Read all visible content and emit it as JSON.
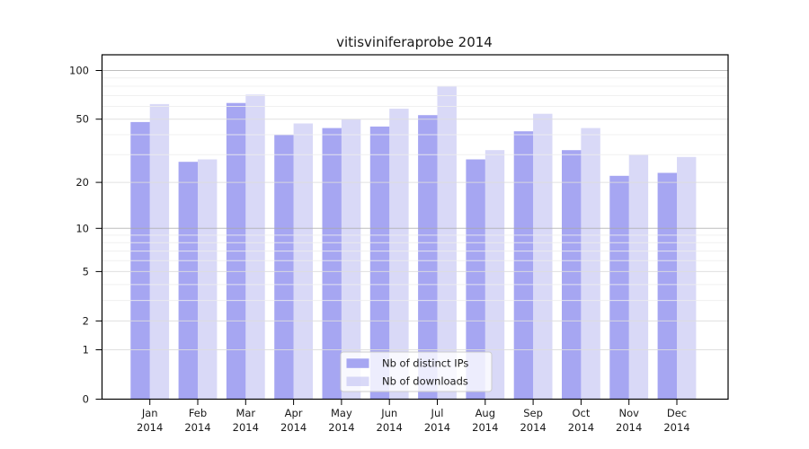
{
  "chart_data": {
    "type": "bar",
    "title": "vitisviniferaprobe 2014",
    "yscale": "log1p",
    "grid": true,
    "categories": [
      "Jan",
      "Feb",
      "Mar",
      "Apr",
      "May",
      "Jun",
      "Jul",
      "Aug",
      "Sep",
      "Oct",
      "Nov",
      "Dec"
    ],
    "category_year": "2014",
    "series": [
      {
        "name": "Nb of distinct IPs",
        "color": "#a6a6f2",
        "fill_opacity": 1,
        "values": [
          48,
          27,
          63,
          40,
          44,
          45,
          53,
          28,
          42,
          32,
          22,
          23
        ]
      },
      {
        "name": "Nb of downloads",
        "color": "#b4b4f0",
        "fill_opacity": 0.5,
        "values": [
          62,
          28,
          71,
          47,
          50,
          58,
          80,
          32,
          54,
          44,
          30,
          29
        ]
      }
    ],
    "y_ticks": [
      0,
      1,
      2,
      5,
      10,
      20,
      50,
      100
    ],
    "y_minor_ticks": [
      3,
      4,
      6,
      7,
      8,
      9,
      30,
      40,
      60,
      70,
      80,
      90
    ],
    "ylim": [
      0,
      125
    ],
    "xlabel": "",
    "ylabel": "",
    "legend": {
      "position": "lower center"
    },
    "colors": {
      "axis": "#000000",
      "grid_decade": "#a8a8a8",
      "grid_major": "#dddddd",
      "grid_minor": "#ededed",
      "legend_border": "#cccccc",
      "legend_bg": "#ffffff"
    }
  }
}
